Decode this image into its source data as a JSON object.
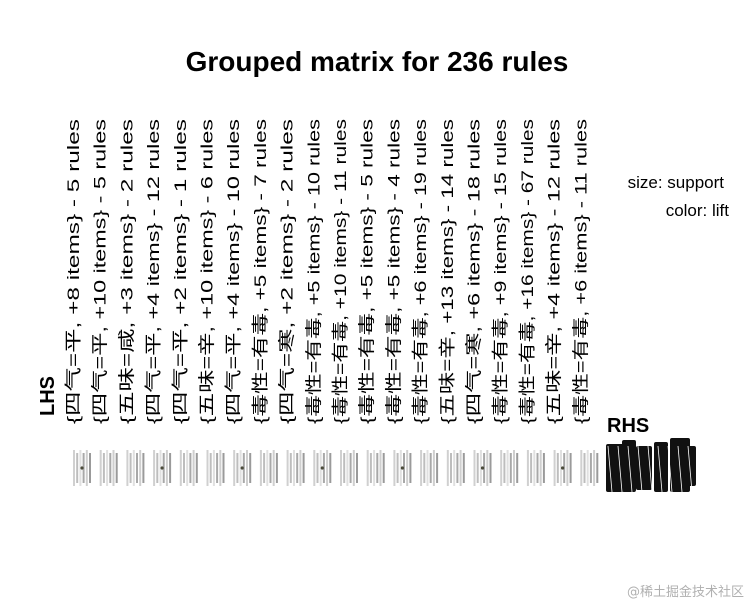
{
  "chart_data": {
    "type": "scatter",
    "title": "Grouped matrix for 236 rules",
    "lhs_axis_title": "LHS",
    "rhs_axis_title": "RHS",
    "legend": {
      "size": "size: support",
      "color": "color: lift",
      "position": "top-right"
    },
    "lhs_groups": [
      "{四气=平, +8 items} - 5 rules",
      "{四气=平, +10 items} - 5 rules",
      "{五味=咸, +3 items} - 2 rules",
      "{四气=平, +4 items} - 12 rules",
      "{四气=平, +2 items} - 1 rules",
      "{五味=辛, +10 items} - 6 rules",
      "{四气=平, +4 items} - 10 rules",
      "{毒性=有毒, +5 items} - 7 rules",
      "{四气=寒, +2 items} - 2 rules",
      "{毒性=有毒, +5 items} - 10 rules",
      "{毒性=有毒, +10 items} - 11 rules",
      "{毒性=有毒, +5 items} - 5 rules",
      "{毒性=有毒, +5 items} - 4 rules",
      "{毒性=有毒, +6 items} - 19 rules",
      "{五味=辛, +13 items} - 14 rules",
      "{四气=寒, +6 items} - 18 rules",
      "{毒性=有毒, +9 items} - 15 rules",
      "{毒性=有毒, +16 items} - 67 rules",
      "{五味=辛, +4 items} - 12 rules",
      "{毒性=有毒, +6 items} - 11 rules"
    ],
    "grid": false
  },
  "watermark": "@稀土掘金技术社区"
}
